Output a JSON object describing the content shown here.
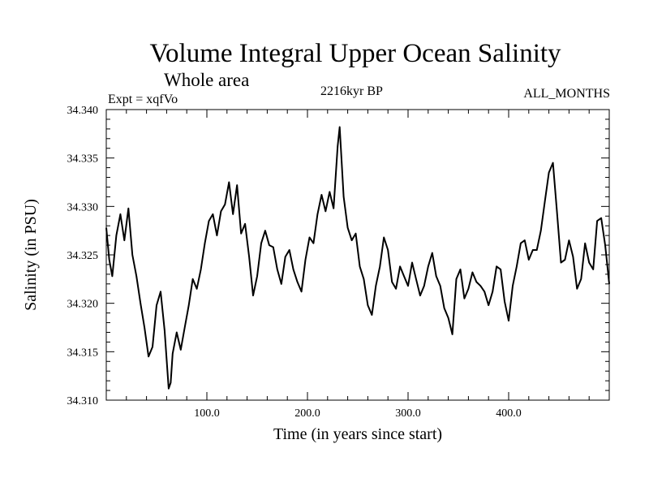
{
  "header": {
    "title": "Volume Integral Upper Ocean Salinity",
    "subtitle": "Whole area",
    "experiment": "Expt = xqfVo",
    "period": "2216kyr BP",
    "months": "ALL_MONTHS"
  },
  "chart_data": {
    "type": "line",
    "title": "Volume Integral Upper Ocean Salinity",
    "xlabel": "Time (in years since start)",
    "ylabel": "Salinity (in PSU)",
    "xlim": [
      0,
      500
    ],
    "ylim": [
      34.31,
      34.34
    ],
    "xticks": [
      100,
      200,
      300,
      400
    ],
    "xtick_labels": [
      "100.0",
      "200.0",
      "300.0",
      "400.0"
    ],
    "yticks": [
      34.31,
      34.315,
      34.32,
      34.325,
      34.33,
      34.335,
      34.34
    ],
    "ytick_labels": [
      "34.310",
      "34.315",
      "34.320",
      "34.325",
      "34.330",
      "34.335",
      "34.340"
    ],
    "series": [
      {
        "name": "Salinity",
        "x": [
          0,
          3,
          6,
          10,
          14,
          18,
          22,
          26,
          30,
          34,
          38,
          42,
          46,
          50,
          54,
          58,
          62,
          64,
          66,
          70,
          74,
          78,
          82,
          86,
          90,
          94,
          98,
          102,
          106,
          110,
          114,
          118,
          122,
          126,
          130,
          134,
          138,
          142,
          146,
          150,
          154,
          158,
          162,
          166,
          170,
          174,
          178,
          182,
          186,
          190,
          194,
          198,
          202,
          206,
          210,
          214,
          218,
          222,
          226,
          230,
          232,
          236,
          240,
          244,
          248,
          252,
          256,
          260,
          264,
          268,
          272,
          276,
          280,
          284,
          288,
          292,
          296,
          300,
          304,
          308,
          312,
          316,
          320,
          324,
          328,
          332,
          336,
          340,
          344,
          348,
          352,
          356,
          360,
          364,
          368,
          372,
          376,
          380,
          384,
          388,
          392,
          396,
          400,
          404,
          408,
          412,
          416,
          420,
          424,
          428,
          432,
          436,
          440,
          444,
          448,
          452,
          456,
          460,
          464,
          468,
          472,
          476,
          480,
          484,
          488,
          492,
          496,
          500
        ],
        "values": [
          34.3278,
          34.3245,
          34.3228,
          34.327,
          34.3292,
          34.3265,
          34.3298,
          34.325,
          34.3228,
          34.32,
          34.3175,
          34.3145,
          34.3155,
          34.3198,
          34.3212,
          34.3172,
          34.3112,
          34.3118,
          34.3148,
          34.317,
          34.3152,
          34.3175,
          34.3198,
          34.3225,
          34.3215,
          34.3235,
          34.3262,
          34.3285,
          34.3292,
          34.327,
          34.3295,
          34.3302,
          34.3325,
          34.3292,
          34.3322,
          34.3272,
          34.3282,
          34.3248,
          34.3208,
          34.3228,
          34.3262,
          34.3275,
          34.326,
          34.3258,
          34.3235,
          34.322,
          34.3248,
          34.3255,
          34.3235,
          34.3222,
          34.3212,
          34.3245,
          34.3268,
          34.3262,
          34.3292,
          34.3312,
          34.3295,
          34.3315,
          34.3298,
          34.3362,
          34.3382,
          34.331,
          34.3278,
          34.3265,
          34.3272,
          34.3238,
          34.3225,
          34.3198,
          34.3188,
          34.3218,
          34.3238,
          34.3268,
          34.3255,
          34.3222,
          34.3215,
          34.3238,
          34.3228,
          34.3218,
          34.3242,
          34.3225,
          34.3208,
          34.3218,
          34.3238,
          34.3252,
          34.3228,
          34.3218,
          34.3195,
          34.3185,
          34.3168,
          34.3225,
          34.3235,
          34.3205,
          34.3215,
          34.3232,
          34.3222,
          34.3218,
          34.3212,
          34.3198,
          34.3212,
          34.3238,
          34.3235,
          34.3202,
          34.3182,
          34.3218,
          34.3238,
          34.3262,
          34.3265,
          34.3245,
          34.3255,
          34.3255,
          34.3275,
          34.3305,
          34.3335,
          34.3345,
          34.3295,
          34.3242,
          34.3245,
          34.3265,
          34.3248,
          34.3215,
          34.3225,
          34.3262,
          34.3242,
          34.3235,
          34.3285,
          34.3288,
          34.326,
          34.322
        ]
      }
    ]
  }
}
